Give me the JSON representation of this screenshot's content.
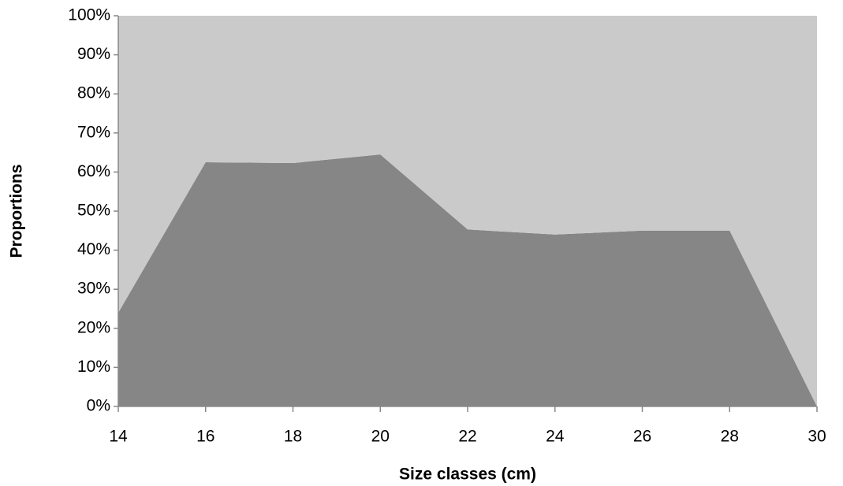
{
  "chart_data": {
    "type": "stacked-area",
    "x_label": "Size classes (cm)",
    "y_label": "Proportions",
    "x": [
      14,
      16,
      18,
      20,
      22,
      24,
      26,
      28,
      30
    ],
    "series": [
      {
        "color": "#868686",
        "values": [
          24,
          62.5,
          62.3,
          64.5,
          45.3,
          44,
          45,
          45,
          0
        ]
      },
      {
        "color": "#cacaca",
        "values": [
          76,
          37.5,
          37.7,
          35.5,
          54.7,
          56,
          55,
          55,
          100
        ]
      }
    ],
    "xlim": [
      14,
      30
    ],
    "xticks": [
      14,
      16,
      18,
      20,
      22,
      24,
      26,
      28,
      30
    ],
    "ylim": [
      0,
      100
    ],
    "yticks": [
      {
        "value": 0,
        "label": "0%"
      },
      {
        "value": 10,
        "label": "10%"
      },
      {
        "value": 20,
        "label": "20%"
      },
      {
        "value": 30,
        "label": "30%"
      },
      {
        "value": 40,
        "label": "40%"
      },
      {
        "value": 50,
        "label": "50%"
      },
      {
        "value": 60,
        "label": "60%"
      },
      {
        "value": 70,
        "label": "70%"
      },
      {
        "value": 80,
        "label": "80%"
      },
      {
        "value": 90,
        "label": "90%"
      },
      {
        "value": 100,
        "label": "100%"
      }
    ]
  }
}
